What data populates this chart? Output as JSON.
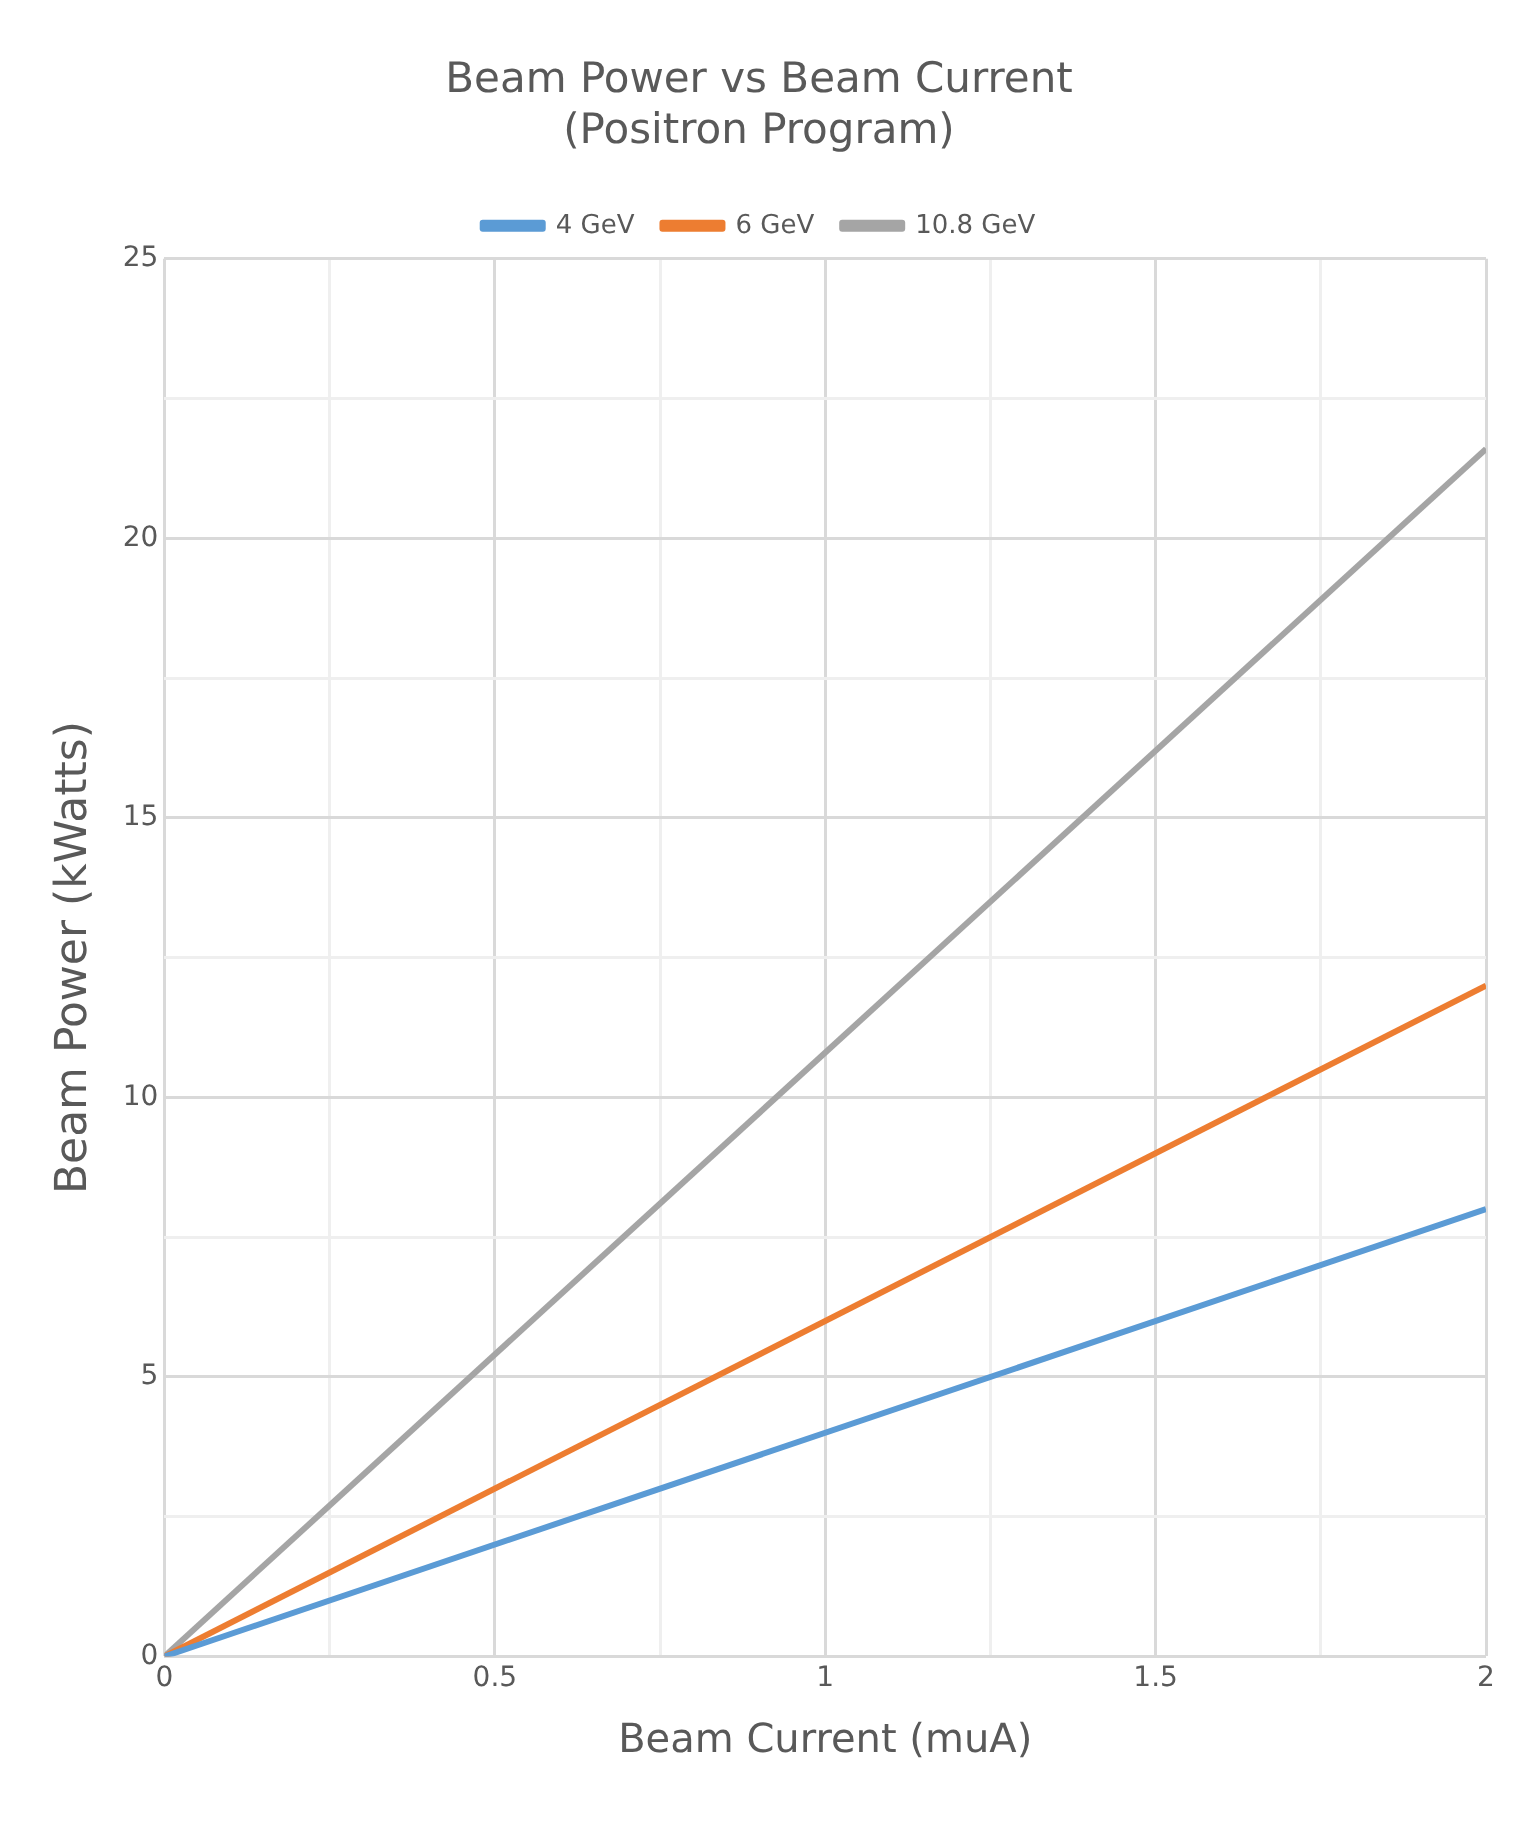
{
  "chart_data": {
    "type": "line",
    "title": "Beam Power vs Beam Current\n(Positron Program)",
    "xlabel": "Beam Current (muA)",
    "ylabel": "Beam Power (kWatts)",
    "x": [
      0,
      2
    ],
    "series": [
      {
        "name": "4 GeV",
        "color": "#5b9bd5",
        "values": [
          0,
          8
        ]
      },
      {
        "name": "6 GeV",
        "color": "#ed7d31",
        "values": [
          0,
          12
        ]
      },
      {
        "name": "10.8 GeV",
        "color": "#a5a5a5",
        "values": [
          0,
          21.6
        ]
      }
    ],
    "xlim": [
      0,
      2
    ],
    "xticks": [
      0,
      {
        "value": 0.25,
        "label": null
      },
      0.5,
      {
        "value": 0.75,
        "label": null
      },
      1,
      {
        "value": 1.25,
        "label": null
      },
      1.5,
      {
        "value": 1.75,
        "label": null
      },
      2
    ],
    "ylim": [
      0,
      25
    ],
    "yticks": [
      0,
      {
        "value": 2.5,
        "label": null
      },
      5,
      {
        "value": 7.5,
        "label": null
      },
      10,
      {
        "value": 12.5,
        "label": null
      },
      15,
      {
        "value": 17.5,
        "label": null
      },
      20,
      {
        "value": 22.5,
        "label": null
      },
      25
    ],
    "grid": true,
    "legend": "top",
    "marker": "none",
    "line_style": "solid"
  }
}
